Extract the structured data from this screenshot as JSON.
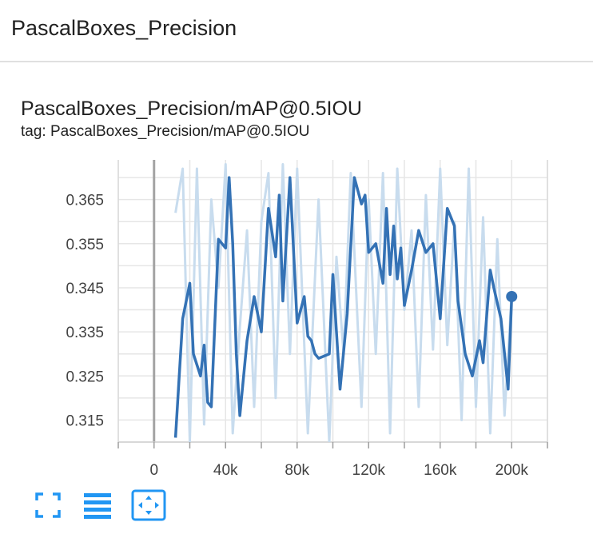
{
  "header": {
    "title": "PascalBoxes_Precision"
  },
  "card": {
    "title": "PascalBoxes_Precision/mAP@0.5IOU",
    "tag": "tag: PascalBoxes_Precision/mAP@0.5IOU"
  },
  "toolbar": {
    "buttons": [
      {
        "icon": "fullscreen-icon"
      },
      {
        "icon": "list-icon"
      },
      {
        "icon": "fit-domain-icon"
      }
    ]
  },
  "colors": {
    "smoothed_line": "#3472b5",
    "raw_line": "#c8dcee",
    "grid": "#e6e6e6",
    "zero_axis": "#a3a3a3",
    "toolbar_icon": "#2196f3"
  },
  "chart_data": {
    "type": "line",
    "title": "",
    "xlabel": "",
    "ylabel": "",
    "xlim": [
      -20000,
      220000
    ],
    "ylim": [
      0.31,
      0.374
    ],
    "x_ticks": [
      0,
      40000,
      80000,
      120000,
      160000,
      200000
    ],
    "x_tick_labels": [
      "0",
      "40k",
      "80k",
      "120k",
      "160k",
      "200k"
    ],
    "y_ticks": [
      0.315,
      0.325,
      0.335,
      0.345,
      0.355,
      0.365
    ],
    "y_tick_labels": [
      "0.315",
      "0.325",
      "0.335",
      "0.345",
      "0.355",
      "0.365"
    ],
    "grid": true,
    "series": [
      {
        "role": "raw",
        "x": [
          12000,
          16000,
          20000,
          24000,
          28000,
          32000,
          36000,
          40000,
          44000,
          48000,
          52000,
          56000,
          60000,
          64000,
          68000,
          72000,
          76000,
          80000,
          86000,
          92000,
          98000,
          102000,
          106000,
          110000,
          116000,
          120000,
          124000,
          128000,
          132000,
          136000,
          140000,
          144000,
          148000,
          152000,
          156000,
          160000,
          164000,
          168000,
          172000,
          176000,
          180000,
          184000,
          188000,
          192000,
          196000,
          200000
        ],
        "y": [
          0.362,
          0.372,
          0.31,
          0.372,
          0.314,
          0.365,
          0.345,
          0.373,
          0.312,
          0.336,
          0.358,
          0.318,
          0.36,
          0.371,
          0.32,
          0.373,
          0.33,
          0.372,
          0.312,
          0.365,
          0.31,
          0.352,
          0.33,
          0.371,
          0.318,
          0.365,
          0.33,
          0.371,
          0.312,
          0.372,
          0.34,
          0.358,
          0.318,
          0.366,
          0.331,
          0.372,
          0.332,
          0.36,
          0.315,
          0.372,
          0.318,
          0.361,
          0.312,
          0.356,
          0.316,
          0.344
        ]
      },
      {
        "role": "smoothed",
        "x": [
          12000,
          16000,
          20000,
          22000,
          26000,
          28000,
          30000,
          32000,
          36000,
          40000,
          42000,
          44000,
          46000,
          48000,
          52000,
          56000,
          60000,
          64000,
          68000,
          70000,
          72000,
          76000,
          80000,
          84000,
          86000,
          88000,
          90000,
          92000,
          98000,
          100000,
          104000,
          108000,
          112000,
          116000,
          118000,
          120000,
          124000,
          128000,
          130000,
          132000,
          134000,
          136000,
          138000,
          140000,
          144000,
          148000,
          152000,
          156000,
          160000,
          164000,
          168000,
          170000,
          174000,
          178000,
          182000,
          184000,
          188000,
          190000,
          194000,
          198000,
          200000
        ],
        "y": [
          0.311,
          0.338,
          0.346,
          0.33,
          0.325,
          0.332,
          0.319,
          0.318,
          0.356,
          0.354,
          0.37,
          0.355,
          0.33,
          0.316,
          0.333,
          0.343,
          0.335,
          0.363,
          0.352,
          0.366,
          0.342,
          0.37,
          0.337,
          0.343,
          0.334,
          0.333,
          0.33,
          0.329,
          0.33,
          0.348,
          0.322,
          0.339,
          0.37,
          0.364,
          0.366,
          0.353,
          0.355,
          0.346,
          0.363,
          0.348,
          0.359,
          0.347,
          0.354,
          0.341,
          0.349,
          0.358,
          0.353,
          0.355,
          0.338,
          0.363,
          0.359,
          0.342,
          0.33,
          0.325,
          0.333,
          0.328,
          0.349,
          0.345,
          0.338,
          0.322,
          0.343
        ]
      }
    ],
    "last_point": {
      "x": 200000,
      "y": 0.343
    }
  }
}
